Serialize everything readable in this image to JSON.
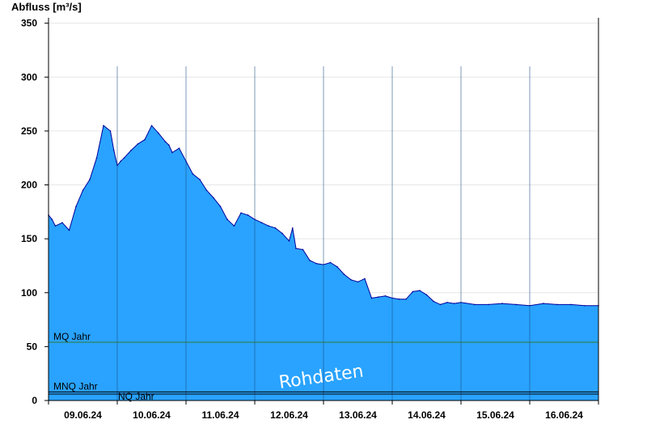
{
  "chart_data": {
    "type": "area",
    "ylabel": "Abfluss [m³/s]",
    "ylim": [
      0,
      355
    ],
    "yticks": [
      0,
      50,
      100,
      150,
      200,
      250,
      300,
      350
    ],
    "xlim": [
      0,
      8
    ],
    "xtick_labels": [
      "09.06.24",
      "10.06.24",
      "11.06.24",
      "12.06.24",
      "13.06.24",
      "14.06.24",
      "15.06.24",
      "16.06.24"
    ],
    "grid": true,
    "fill_color": "#29a3ff",
    "line_color": "#00009c",
    "watermark": "Rohdaten",
    "reference_lines": [
      {
        "label": "MQ Jahr",
        "value": 54,
        "color": "#2e7d32"
      },
      {
        "label": "MNQ Jahr",
        "value": 8,
        "color": "#000000"
      },
      {
        "label": "NQ Jahr",
        "value": 6,
        "color": "#000000"
      }
    ],
    "series": [
      {
        "x": [
          0.0,
          0.05,
          0.1,
          0.2,
          0.3,
          0.4,
          0.5,
          0.6,
          0.7,
          0.8,
          0.9,
          0.95,
          1.0,
          1.05,
          1.1,
          1.2,
          1.3,
          1.4,
          1.5,
          1.6,
          1.7,
          1.75,
          1.8,
          1.9,
          2.0,
          2.1,
          2.2,
          2.3,
          2.4,
          2.5,
          2.6,
          2.7,
          2.8,
          2.9,
          3.0,
          3.1,
          3.2,
          3.3,
          3.4,
          3.5,
          3.55,
          3.6,
          3.7,
          3.8,
          3.9,
          4.0,
          4.1,
          4.2,
          4.3,
          4.4,
          4.5,
          4.6,
          4.7,
          4.8,
          4.9,
          5.0,
          5.1,
          5.2,
          5.3,
          5.4,
          5.5,
          5.6,
          5.7,
          5.8,
          5.9,
          6.0,
          6.2,
          6.4,
          6.6,
          6.8,
          7.0,
          7.2,
          7.4,
          7.6,
          7.8,
          8.0
        ],
        "y": [
          172,
          168,
          162,
          165,
          158,
          180,
          195,
          205,
          225,
          255,
          250,
          232,
          218,
          222,
          225,
          232,
          238,
          242,
          255,
          248,
          240,
          237,
          230,
          234,
          222,
          210,
          205,
          195,
          188,
          180,
          168,
          162,
          174,
          172,
          168,
          165,
          162,
          160,
          155,
          148,
          160,
          141,
          140,
          130,
          127,
          126,
          128,
          124,
          117,
          112,
          110,
          113,
          95,
          96,
          97,
          95,
          94,
          94,
          101,
          102,
          98,
          92,
          89,
          91,
          90,
          91,
          89,
          89,
          90,
          89,
          88,
          90,
          89,
          89,
          88,
          88
        ]
      }
    ]
  }
}
